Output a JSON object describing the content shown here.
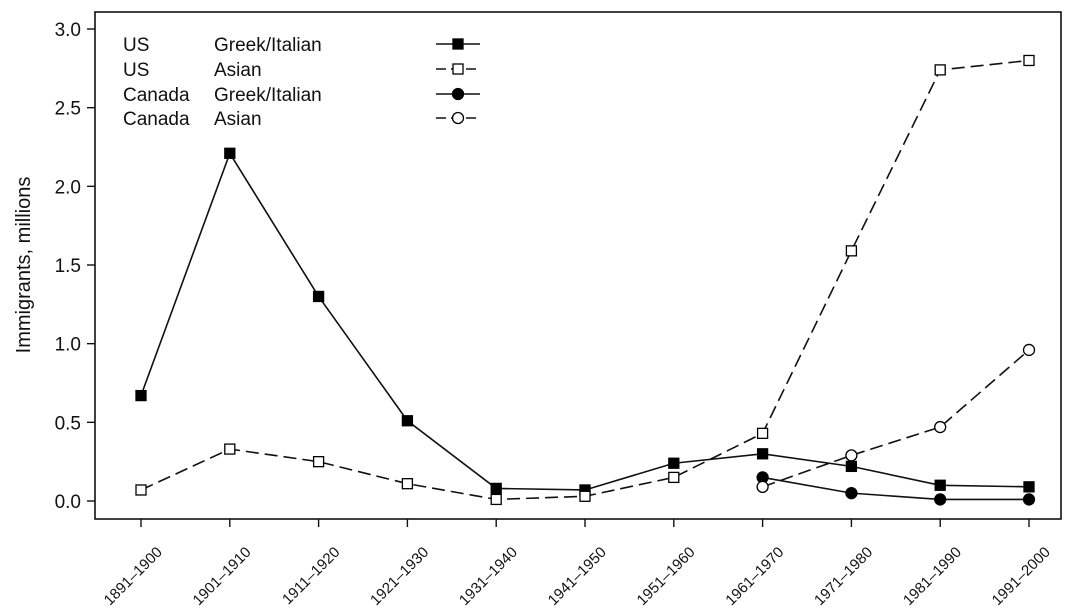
{
  "chart_data": {
    "type": "line",
    "title": "",
    "xlabel": "",
    "ylabel": "Immigrants, millions",
    "ylim": [
      0,
      3.0
    ],
    "yticks": [
      "0.0",
      "0.5",
      "1.0",
      "1.5",
      "2.0",
      "2.5",
      "3.0"
    ],
    "categories": [
      "1891–1900",
      "1901–1910",
      "1911–1920",
      "1921–1930",
      "1931–1940",
      "1941–1950",
      "1951–1960",
      "1961–1970",
      "1971–1980",
      "1981–1990",
      "1991–2000"
    ],
    "grid": false,
    "legend_position": "top-left",
    "series": [
      {
        "name": "Greek/Italian",
        "country": "US",
        "marker": "square-filled",
        "line": "solid",
        "values": [
          0.67,
          2.21,
          1.3,
          0.51,
          0.08,
          0.07,
          0.24,
          0.3,
          0.22,
          0.1,
          0.09
        ]
      },
      {
        "name": "Asian",
        "country": "US",
        "marker": "square-open",
        "line": "dashed",
        "values": [
          0.07,
          0.33,
          0.25,
          0.11,
          0.01,
          0.03,
          0.15,
          0.43,
          1.59,
          2.74,
          2.8
        ]
      },
      {
        "name": "Greek/Italian",
        "country": "Canada",
        "marker": "circle-filled",
        "line": "solid",
        "values": [
          null,
          null,
          null,
          null,
          null,
          null,
          null,
          0.15,
          0.05,
          0.01,
          0.01
        ]
      },
      {
        "name": "Asian",
        "country": "Canada",
        "marker": "circle-open",
        "line": "dashed",
        "values": [
          null,
          null,
          null,
          null,
          null,
          null,
          null,
          0.09,
          0.29,
          0.47,
          0.96
        ]
      }
    ]
  }
}
